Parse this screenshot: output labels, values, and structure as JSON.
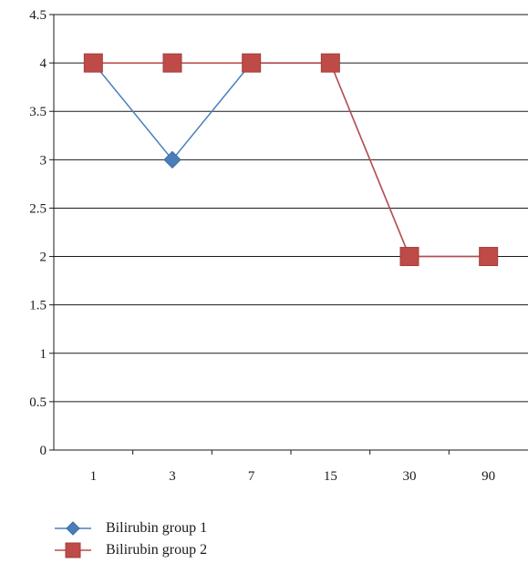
{
  "chart_data": {
    "type": "line",
    "categories": [
      "1",
      "3",
      "7",
      "15",
      "30",
      "90"
    ],
    "series": [
      {
        "name": "Bilirubin group 1",
        "values": [
          4,
          3,
          4,
          4,
          2,
          2
        ],
        "color": "#4a7ebb",
        "marker": "diamond"
      },
      {
        "name": "Bilirubin group 2",
        "values": [
          4,
          4,
          4,
          4,
          2,
          2
        ],
        "color": "#be4b48",
        "marker": "square"
      }
    ],
    "yticks": [
      "0",
      "0.5",
      "1",
      "1.5",
      "2",
      "2.5",
      "3",
      "3.5",
      "4",
      "4.5"
    ],
    "ylim": [
      0,
      4.5
    ],
    "grid": true,
    "legend_position": "bottom-left"
  }
}
